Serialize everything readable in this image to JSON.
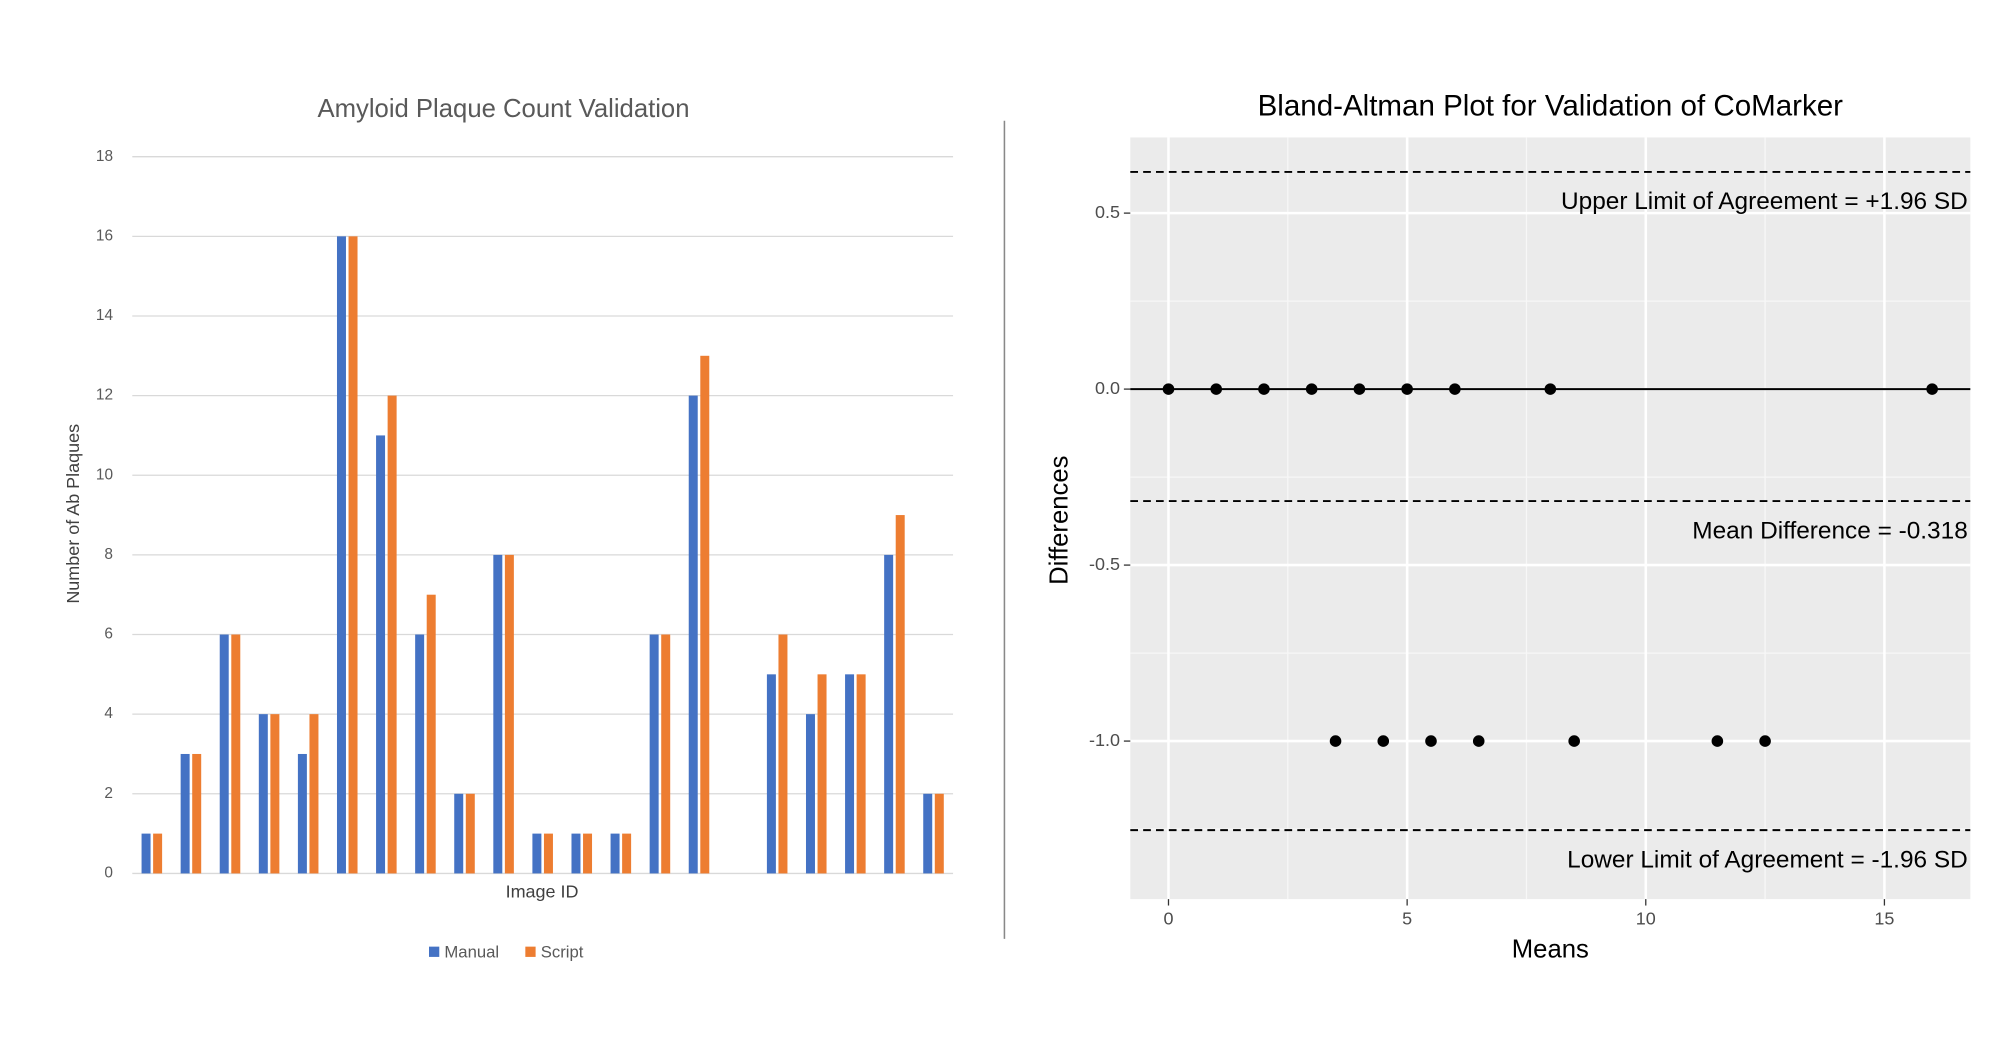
{
  "chart_data": [
    {
      "type": "bar",
      "title": "Amyloid Plaque Count Validation",
      "x_label": "Image ID",
      "y_label": "Number of Ab Plaques",
      "categories": [
        null,
        null,
        null,
        null,
        null,
        null,
        null,
        null,
        null,
        null,
        null,
        null,
        null,
        null,
        null,
        null,
        null,
        null,
        null,
        null,
        null
      ],
      "series": [
        {
          "name": "Manual",
          "color": "#4472c4",
          "values": [
            1,
            3,
            6,
            4,
            3,
            16,
            11,
            6,
            2,
            8,
            1,
            1,
            1,
            6,
            12,
            null,
            5,
            4,
            5,
            8,
            2
          ]
        },
        {
          "name": "Script",
          "color": "#ed7d31",
          "values": [
            1,
            3,
            6,
            4,
            4,
            16,
            12,
            7,
            2,
            8,
            1,
            1,
            1,
            6,
            13,
            null,
            6,
            5,
            5,
            9,
            2
          ]
        }
      ],
      "ylim": [
        0,
        18
      ],
      "yticks": [
        0,
        2,
        4,
        6,
        8,
        10,
        12,
        14,
        16,
        18
      ],
      "grid": true,
      "legend": "bottom"
    },
    {
      "type": "scatter",
      "title": "Bland-Altman Plot for Validation of CoMarker",
      "x_label": "Means",
      "y_label": "Differences",
      "x": [
        0,
        1,
        2,
        3,
        4,
        5,
        6,
        8,
        16,
        3.5,
        4.5,
        5.5,
        6.5,
        8.5,
        11.5,
        12.5
      ],
      "values": [
        0,
        0,
        0,
        0,
        0,
        0,
        0,
        0,
        0,
        -1,
        -1,
        -1,
        -1,
        -1,
        -1,
        -1
      ],
      "color": "#000000",
      "xlim": [
        -0.8,
        16.8
      ],
      "xticks": [
        0,
        5,
        10,
        15
      ],
      "ylim": [
        -1.449,
        0.715
      ],
      "yticks": [
        0.5,
        {
          "value": 0,
          "label": "0.0"
        },
        -0.5,
        {
          "value": -1,
          "label": "-1.0"
        }
      ],
      "grid": true,
      "hlines": [
        {
          "value": 0.617,
          "label": "Upper Limit of Agreement = +1.96 SD",
          "style": "dashed"
        },
        {
          "value": 0,
          "style": "solid"
        },
        {
          "value": -0.318,
          "label": "Mean Difference = -0.318",
          "style": "dashed"
        },
        {
          "value": -1.253,
          "label": "Lower Limit of Agreement = -1.96 SD",
          "style": "dashed"
        }
      ]
    }
  ]
}
